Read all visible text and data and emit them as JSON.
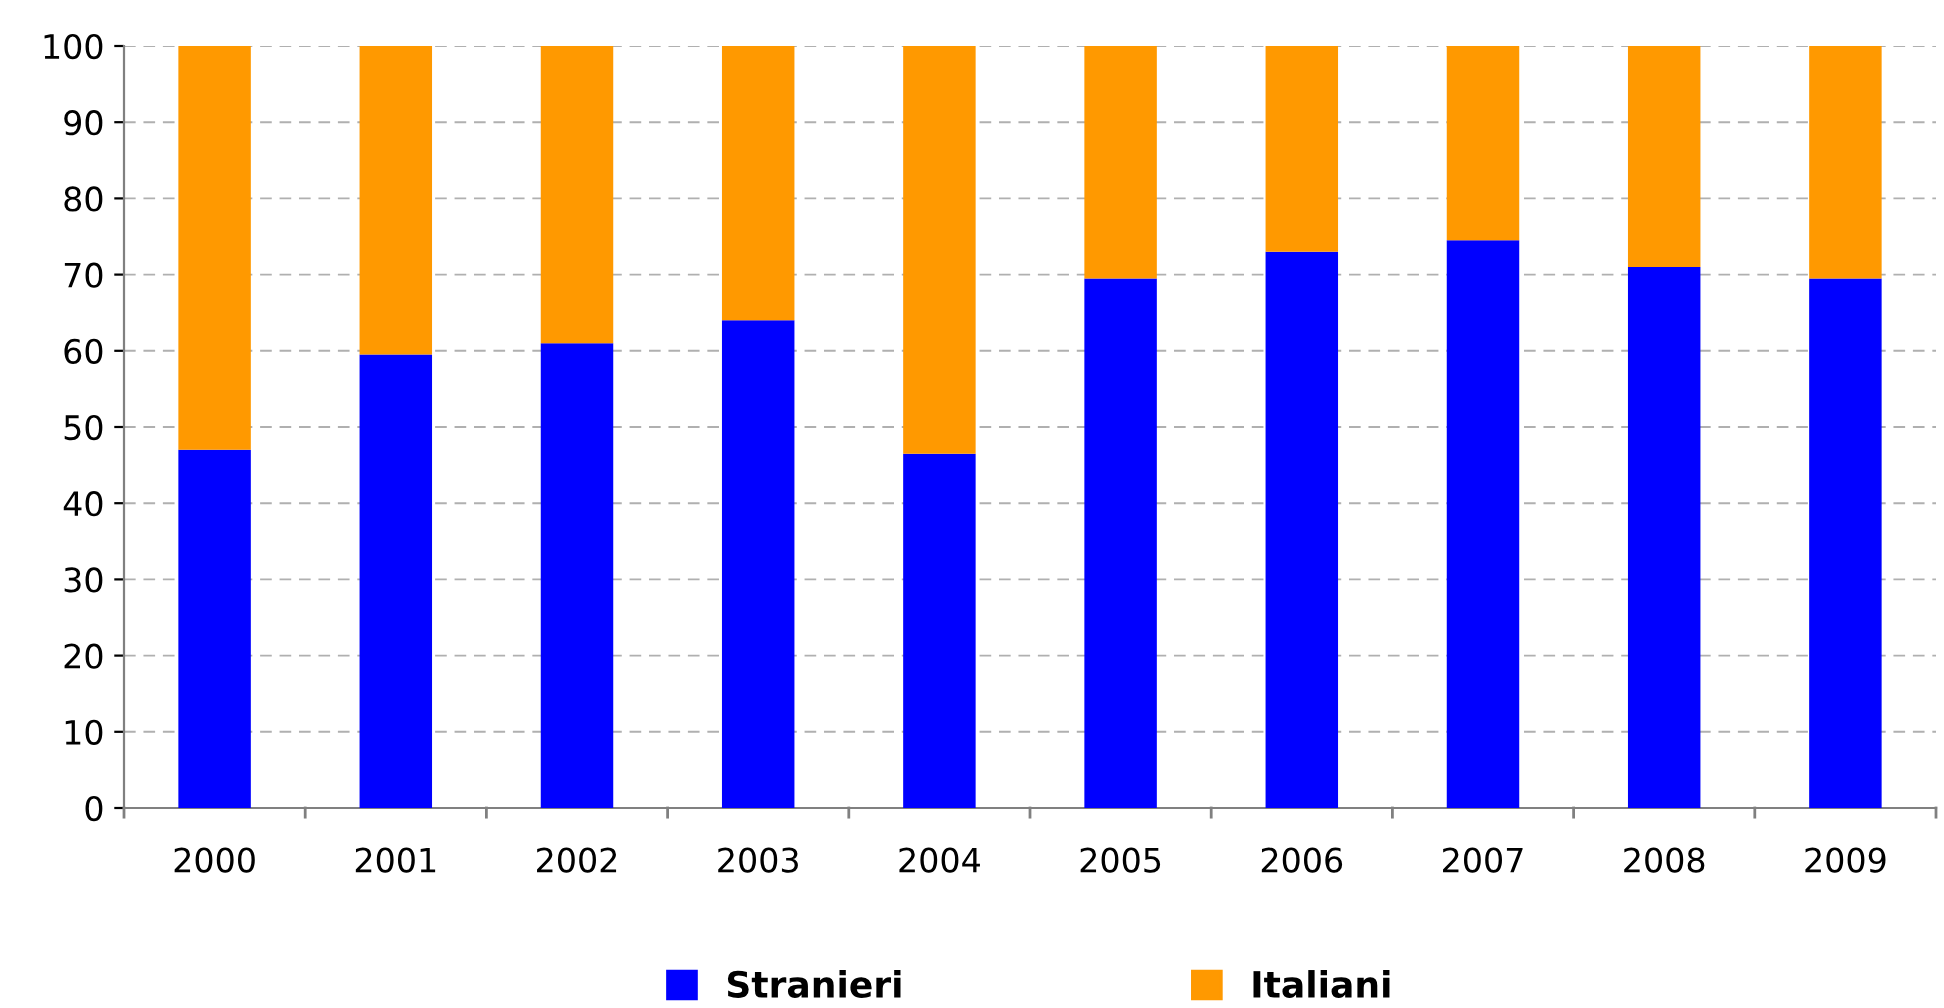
{
  "chart_data": {
    "type": "bar",
    "stacked": true,
    "categories": [
      "2000",
      "2001",
      "2002",
      "2003",
      "2004",
      "2005",
      "2006",
      "2007",
      "2008",
      "2009"
    ],
    "series": [
      {
        "name": "Stranieri",
        "color": "#0000ff",
        "values": [
          47,
          59.5,
          61,
          64,
          46.5,
          69.5,
          73,
          74.5,
          71,
          69.5
        ]
      },
      {
        "name": "Italiani",
        "color": "#ff9900",
        "values": [
          53,
          40.5,
          39,
          36,
          53.5,
          30.5,
          27,
          25.5,
          29,
          30.5
        ]
      }
    ],
    "ylim": [
      0,
      100
    ],
    "yticks": [
      0,
      10,
      20,
      30,
      40,
      50,
      60,
      70,
      80,
      90,
      100
    ],
    "grid": "y",
    "legend": "bottom"
  }
}
